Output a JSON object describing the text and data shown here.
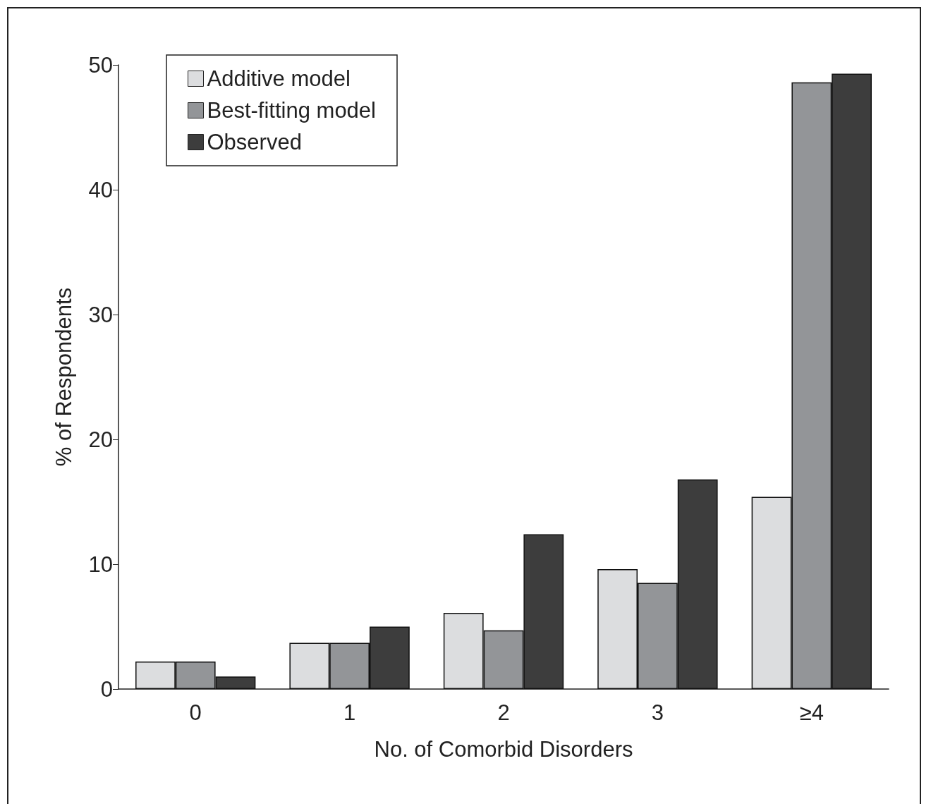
{
  "chart_data": {
    "type": "bar",
    "xlabel": "No. of Comorbid Disorders",
    "ylabel": "% of Respondents",
    "categories": [
      "0",
      "1",
      "2",
      "3",
      "≥4"
    ],
    "series": [
      {
        "name": "Additive model",
        "color": "#dcdddf",
        "values": [
          2.2,
          3.7,
          6.1,
          9.6,
          15.4
        ]
      },
      {
        "name": "Best-fitting model",
        "color": "#939598",
        "values": [
          2.2,
          3.7,
          4.7,
          8.5,
          48.6
        ]
      },
      {
        "name": "Observed",
        "color": "#3d3d3d",
        "values": [
          1.0,
          5.0,
          12.4,
          16.8,
          49.3
        ]
      }
    ],
    "ylim": [
      0,
      50
    ],
    "yticks": [
      0,
      10,
      20,
      30,
      40,
      50
    ],
    "grid": false,
    "legend": "top left"
  }
}
